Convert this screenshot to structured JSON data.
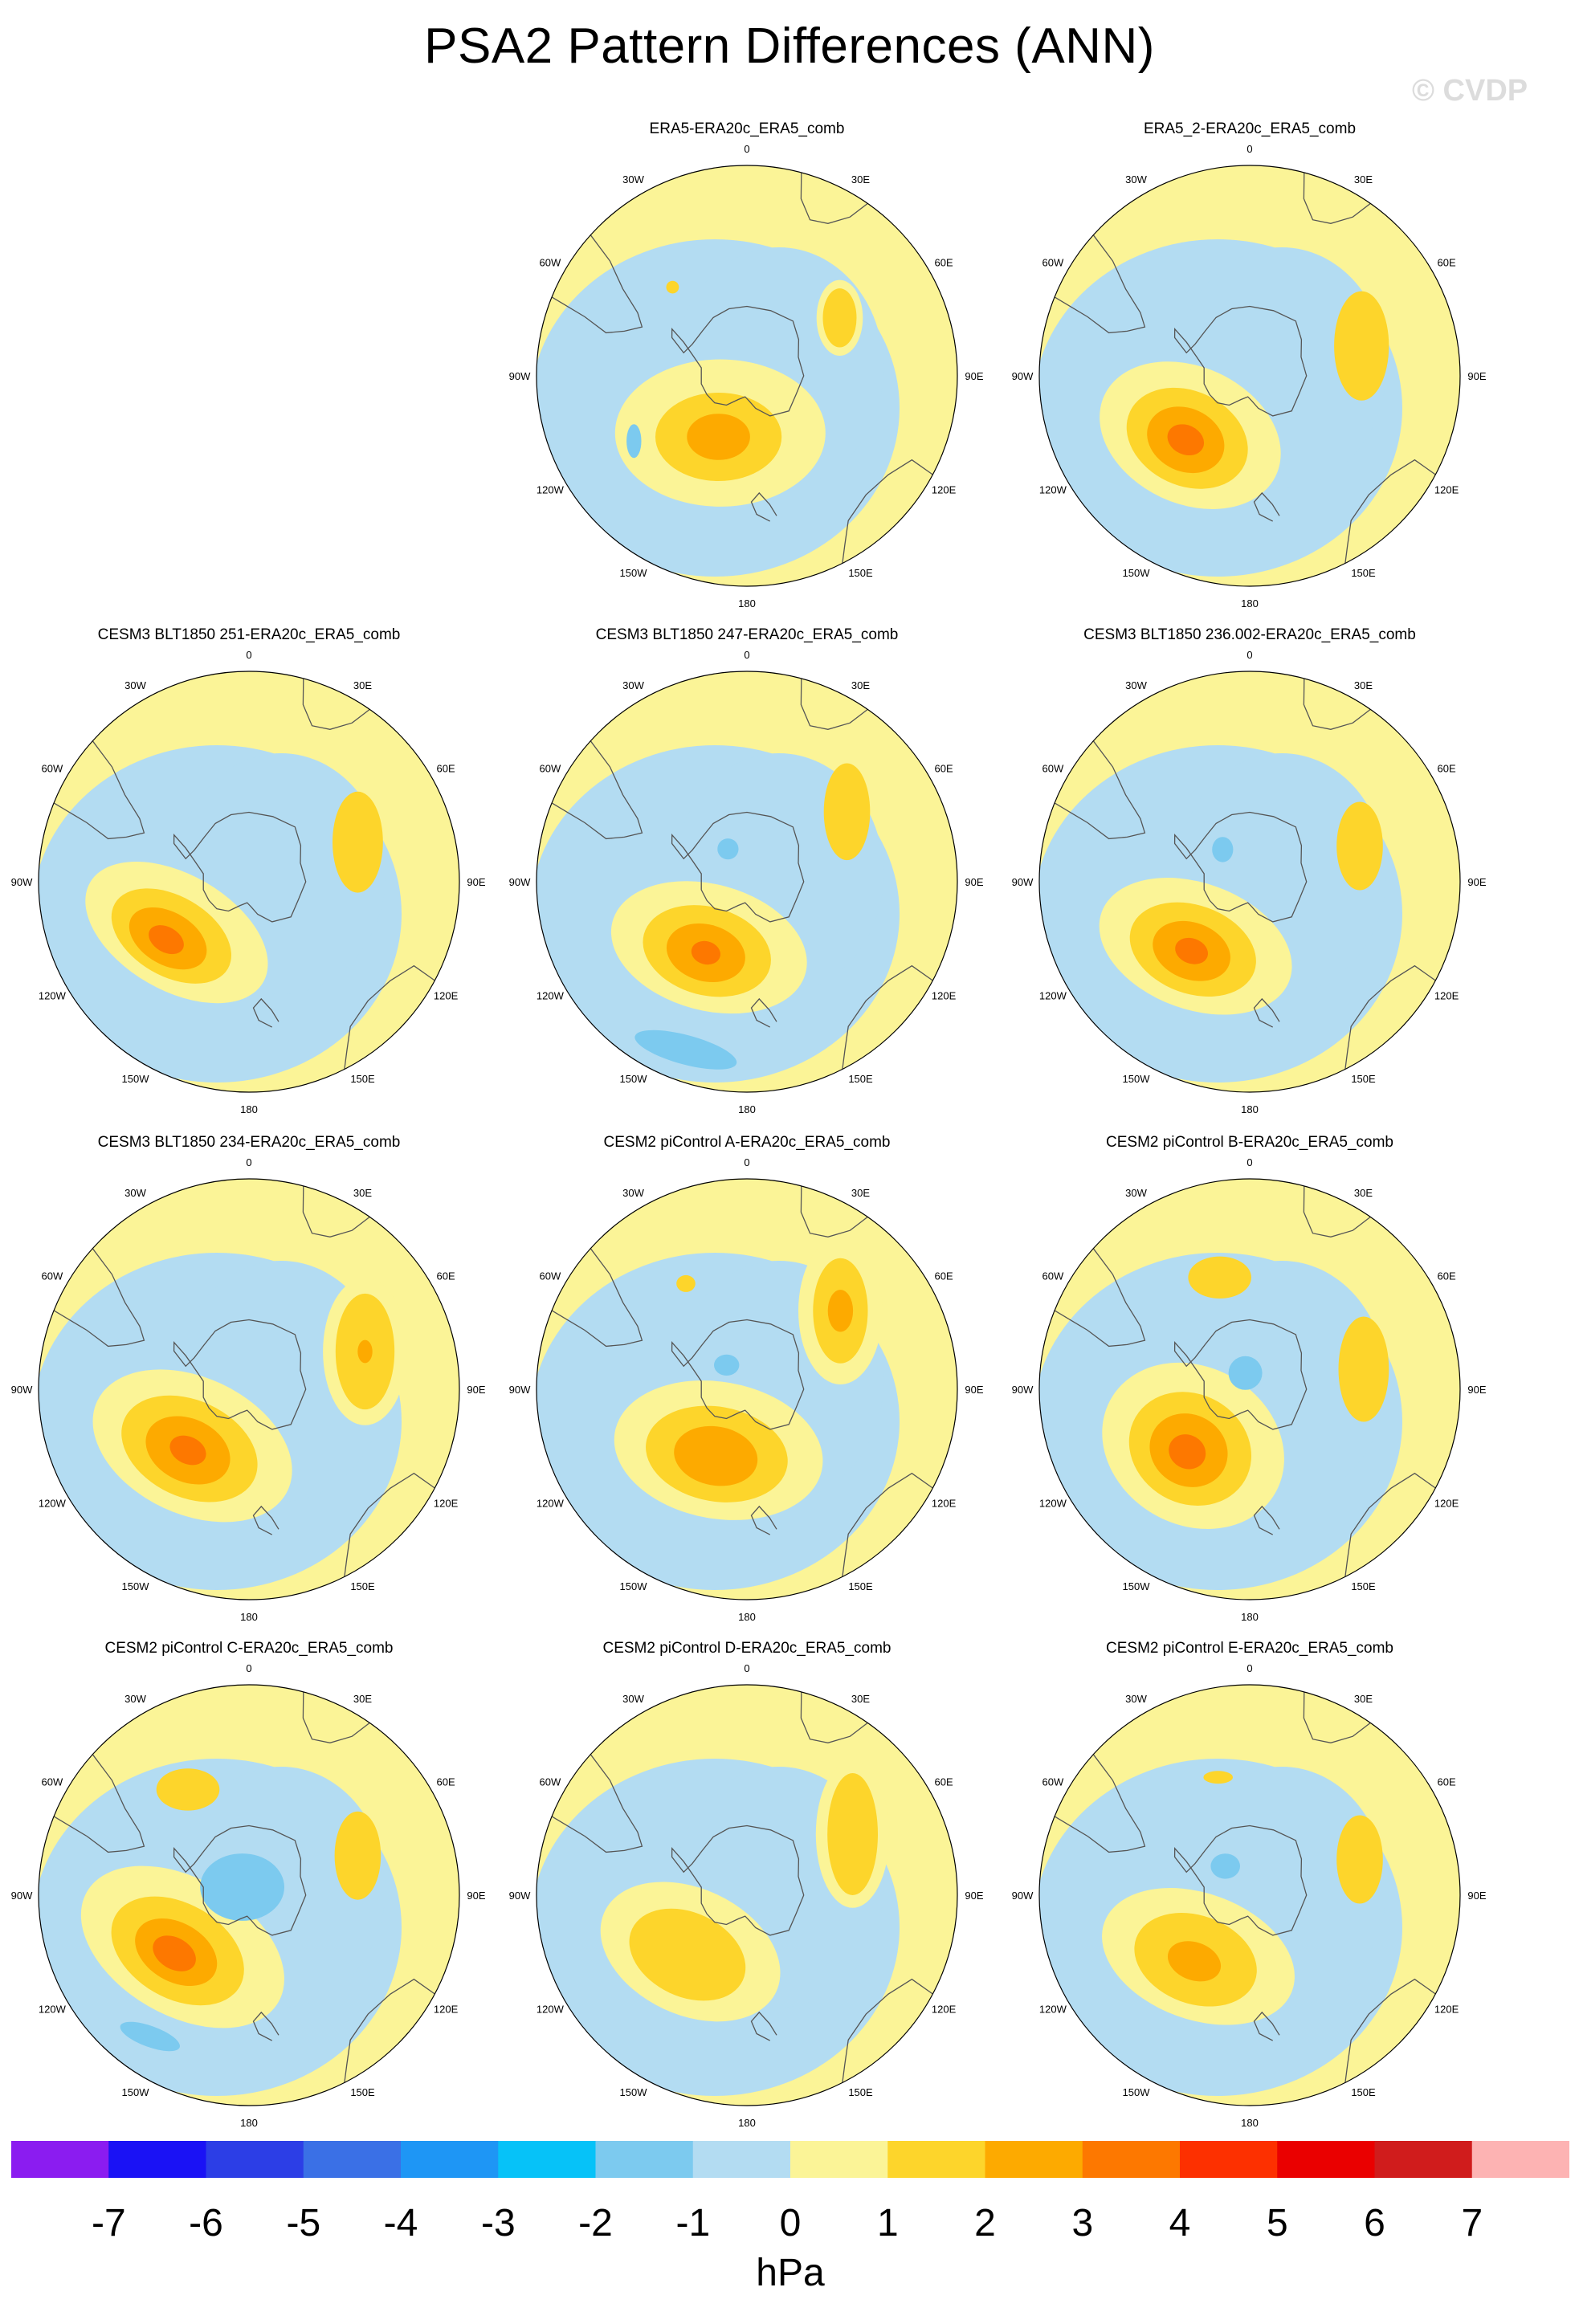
{
  "page": {
    "title": "PSA2 Pattern Differences (ANN)",
    "watermark": "© CVDP"
  },
  "chart_data": {
    "type": "heatmap",
    "title": "PSA2 Pattern Differences (ANN)",
    "projection": "south polar stereographic",
    "units": "hPa",
    "lon_labels": [
      "0",
      "30E",
      "60E",
      "90E",
      "120E",
      "150E",
      "180",
      "150W",
      "120W",
      "90W",
      "60W",
      "30W"
    ],
    "colorbar": {
      "ticks": [
        "-7",
        "-6",
        "-5",
        "-4",
        "-3",
        "-2",
        "-1",
        "0",
        "1",
        "2",
        "3",
        "4",
        "5",
        "6",
        "7"
      ],
      "colors": [
        "#8b1cf0",
        "#1a12f5",
        "#2c3ee6",
        "#3a70e6",
        "#1e96f5",
        "#06c2f8",
        "#7ccaef",
        "#b3dcf2",
        "#fbf497",
        "#fdd52b",
        "#fdaa00",
        "#fd7800",
        "#fd3000",
        "#ea0000",
        "#d01c1c",
        "#fdb3b3"
      ]
    },
    "panels": [
      {
        "title": "ERA5-ERA20c_ERA5_comb",
        "features": [
          {
            "level": 1,
            "lon": 205,
            "r": 0.3,
            "sx": 1.0,
            "sy": 0.7,
            "rot": 0
          },
          {
            "level": 2,
            "lon": 205,
            "r": 0.32,
            "sx": 0.6,
            "sy": 0.42,
            "rot": 0
          },
          {
            "level": 3,
            "lon": 205,
            "r": 0.32,
            "sx": 0.3,
            "sy": 0.22,
            "rot": 0
          },
          {
            "level": 1,
            "lon": 58,
            "r": 0.52,
            "sx": 0.22,
            "sy": 0.36,
            "rot": 0
          },
          {
            "level": 2,
            "lon": 58,
            "r": 0.52,
            "sx": 0.16,
            "sy": 0.28,
            "rot": 0
          },
          {
            "level": -2,
            "lon": 240,
            "r": 0.62,
            "sx": 0.07,
            "sy": 0.16,
            "rot": 0
          },
          {
            "level": 2,
            "lon": 320,
            "r": 0.55,
            "sx": 0.06,
            "sy": 0.06,
            "rot": 0
          }
        ]
      },
      {
        "title": "ERA5_2-ERA20c_ERA5_comb",
        "features": [
          {
            "level": 1,
            "lon": 225,
            "r": 0.4,
            "sx": 0.9,
            "sy": 0.65,
            "rot": 25
          },
          {
            "level": 2,
            "lon": 225,
            "r": 0.42,
            "sx": 0.6,
            "sy": 0.45,
            "rot": 25
          },
          {
            "level": 3,
            "lon": 225,
            "r": 0.43,
            "sx": 0.38,
            "sy": 0.3,
            "rot": 25
          },
          {
            "level": 4,
            "lon": 225,
            "r": 0.43,
            "sx": 0.18,
            "sy": 0.14,
            "rot": 25
          },
          {
            "level": 2,
            "lon": 75,
            "r": 0.55,
            "sx": 0.26,
            "sy": 0.52,
            "rot": 0
          }
        ]
      },
      {
        "title": "CESM3 BLT1850 251-ERA20c_ERA5_comb",
        "features": [
          {
            "level": 1,
            "lon": 235,
            "r": 0.42,
            "sx": 0.95,
            "sy": 0.55,
            "rot": 30
          },
          {
            "level": 2,
            "lon": 235,
            "r": 0.45,
            "sx": 0.62,
            "sy": 0.38,
            "rot": 30
          },
          {
            "level": 3,
            "lon": 235,
            "r": 0.47,
            "sx": 0.4,
            "sy": 0.25,
            "rot": 30
          },
          {
            "level": 4,
            "lon": 235,
            "r": 0.48,
            "sx": 0.18,
            "sy": 0.12,
            "rot": 30
          },
          {
            "level": 2,
            "lon": 70,
            "r": 0.55,
            "sx": 0.24,
            "sy": 0.48,
            "rot": 0
          }
        ]
      },
      {
        "title": "CESM3 BLT1850 247-ERA20c_ERA5_comb",
        "features": [
          {
            "level": 1,
            "lon": 210,
            "r": 0.36,
            "sx": 0.95,
            "sy": 0.6,
            "rot": 15
          },
          {
            "level": 2,
            "lon": 210,
            "r": 0.38,
            "sx": 0.62,
            "sy": 0.42,
            "rot": 15
          },
          {
            "level": 3,
            "lon": 210,
            "r": 0.39,
            "sx": 0.38,
            "sy": 0.27,
            "rot": 15
          },
          {
            "level": 4,
            "lon": 210,
            "r": 0.39,
            "sx": 0.14,
            "sy": 0.11,
            "rot": 15
          },
          {
            "level": 2,
            "lon": 55,
            "r": 0.58,
            "sx": 0.22,
            "sy": 0.46,
            "rot": 0
          },
          {
            "level": -2,
            "lon": 200,
            "r": 0.85,
            "sx": 0.5,
            "sy": 0.14,
            "rot": 15
          },
          {
            "level": -2,
            "lon": 330,
            "r": 0.18,
            "sx": 0.1,
            "sy": 0.1,
            "rot": 0
          }
        ]
      },
      {
        "title": "CESM3 BLT1850 236.002-ERA20c_ERA5_comb",
        "features": [
          {
            "level": 1,
            "lon": 220,
            "r": 0.4,
            "sx": 0.95,
            "sy": 0.6,
            "rot": 20
          },
          {
            "level": 2,
            "lon": 220,
            "r": 0.42,
            "sx": 0.62,
            "sy": 0.42,
            "rot": 20
          },
          {
            "level": 3,
            "lon": 220,
            "r": 0.43,
            "sx": 0.38,
            "sy": 0.27,
            "rot": 20
          },
          {
            "level": 4,
            "lon": 220,
            "r": 0.43,
            "sx": 0.16,
            "sy": 0.12,
            "rot": 20
          },
          {
            "level": 2,
            "lon": 72,
            "r": 0.55,
            "sx": 0.22,
            "sy": 0.42,
            "rot": 0
          },
          {
            "level": -2,
            "lon": 320,
            "r": 0.2,
            "sx": 0.1,
            "sy": 0.12,
            "rot": 0
          }
        ]
      },
      {
        "title": "CESM3 BLT1850 234-ERA20c_ERA5_comb",
        "features": [
          {
            "level": 1,
            "lon": 225,
            "r": 0.38,
            "sx": 1.0,
            "sy": 0.65,
            "rot": 25
          },
          {
            "level": 2,
            "lon": 225,
            "r": 0.4,
            "sx": 0.68,
            "sy": 0.46,
            "rot": 25
          },
          {
            "level": 3,
            "lon": 225,
            "r": 0.41,
            "sx": 0.42,
            "sy": 0.3,
            "rot": 25
          },
          {
            "level": 4,
            "lon": 225,
            "r": 0.41,
            "sx": 0.18,
            "sy": 0.13,
            "rot": 25
          },
          {
            "level": 1,
            "lon": 72,
            "r": 0.58,
            "sx": 0.4,
            "sy": 0.7,
            "rot": 0
          },
          {
            "level": 2,
            "lon": 72,
            "r": 0.58,
            "sx": 0.28,
            "sy": 0.55,
            "rot": 0
          },
          {
            "level": 3,
            "lon": 72,
            "r": 0.58,
            "sx": 0.07,
            "sy": 0.11,
            "rot": 0
          }
        ]
      },
      {
        "title": "CESM2 piControl A-ERA20c_ERA5_comb",
        "features": [
          {
            "level": 1,
            "lon": 205,
            "r": 0.32,
            "sx": 1.0,
            "sy": 0.65,
            "rot": 10
          },
          {
            "level": 2,
            "lon": 205,
            "r": 0.34,
            "sx": 0.68,
            "sy": 0.45,
            "rot": 10
          },
          {
            "level": 3,
            "lon": 205,
            "r": 0.35,
            "sx": 0.4,
            "sy": 0.28,
            "rot": 10
          },
          {
            "level": 1,
            "lon": 50,
            "r": 0.58,
            "sx": 0.4,
            "sy": 0.7,
            "rot": 0
          },
          {
            "level": 2,
            "lon": 50,
            "r": 0.58,
            "sx": 0.26,
            "sy": 0.5,
            "rot": 0
          },
          {
            "level": 3,
            "lon": 50,
            "r": 0.58,
            "sx": 0.12,
            "sy": 0.2,
            "rot": 0
          },
          {
            "level": 2,
            "lon": 330,
            "r": 0.58,
            "sx": 0.09,
            "sy": 0.08,
            "rot": 0
          },
          {
            "level": -2,
            "lon": 320,
            "r": 0.15,
            "sx": 0.12,
            "sy": 0.1,
            "rot": 0
          }
        ]
      },
      {
        "title": "CESM2 piControl B-ERA20c_ERA5_comb",
        "features": [
          {
            "level": 1,
            "lon": 225,
            "r": 0.38,
            "sx": 0.9,
            "sy": 0.75,
            "rot": 30
          },
          {
            "level": 2,
            "lon": 225,
            "r": 0.4,
            "sx": 0.6,
            "sy": 0.52,
            "rot": 30
          },
          {
            "level": 3,
            "lon": 225,
            "r": 0.41,
            "sx": 0.38,
            "sy": 0.34,
            "rot": 30
          },
          {
            "level": 4,
            "lon": 225,
            "r": 0.42,
            "sx": 0.18,
            "sy": 0.16,
            "rot": 30
          },
          {
            "level": 2,
            "lon": 80,
            "r": 0.55,
            "sx": 0.24,
            "sy": 0.5,
            "rot": 0
          },
          {
            "level": 2,
            "lon": 345,
            "r": 0.55,
            "sx": 0.3,
            "sy": 0.2,
            "rot": 0
          },
          {
            "level": -2,
            "lon": 345,
            "r": 0.08,
            "sx": 0.16,
            "sy": 0.16,
            "rot": 0
          }
        ]
      },
      {
        "title": "CESM2 piControl C-ERA20c_ERA5_comb",
        "features": [
          {
            "level": 1,
            "lon": 232,
            "r": 0.4,
            "sx": 1.05,
            "sy": 0.65,
            "rot": 30
          },
          {
            "level": 2,
            "lon": 232,
            "r": 0.43,
            "sx": 0.68,
            "sy": 0.45,
            "rot": 30
          },
          {
            "level": 3,
            "lon": 232,
            "r": 0.44,
            "sx": 0.42,
            "sy": 0.28,
            "rot": 30
          },
          {
            "level": 4,
            "lon": 232,
            "r": 0.45,
            "sx": 0.22,
            "sy": 0.15,
            "rot": 30
          },
          {
            "level": 2,
            "lon": 70,
            "r": 0.55,
            "sx": 0.22,
            "sy": 0.42,
            "rot": 0
          },
          {
            "level": 2,
            "lon": 330,
            "r": 0.58,
            "sx": 0.3,
            "sy": 0.2,
            "rot": 0
          },
          {
            "level": -2,
            "lon": 320,
            "r": 0.05,
            "sx": 0.4,
            "sy": 0.32,
            "rot": 0
          },
          {
            "level": -2,
            "lon": 215,
            "r": 0.82,
            "sx": 0.3,
            "sy": 0.1,
            "rot": 20
          }
        ]
      },
      {
        "title": "CESM2 piControl D-ERA20c_ERA5_comb",
        "features": [
          {
            "level": 1,
            "lon": 225,
            "r": 0.38,
            "sx": 0.9,
            "sy": 0.6,
            "rot": 25
          },
          {
            "level": 2,
            "lon": 225,
            "r": 0.4,
            "sx": 0.58,
            "sy": 0.4,
            "rot": 25
          },
          {
            "level": 1,
            "lon": 60,
            "r": 0.58,
            "sx": 0.35,
            "sy": 0.7,
            "rot": 0
          },
          {
            "level": 2,
            "lon": 60,
            "r": 0.58,
            "sx": 0.24,
            "sy": 0.58,
            "rot": 0
          }
        ]
      },
      {
        "title": "CESM2 piControl E-ERA20c_ERA5_comb",
        "features": [
          {
            "level": 1,
            "lon": 220,
            "r": 0.38,
            "sx": 0.95,
            "sy": 0.6,
            "rot": 20
          },
          {
            "level": 2,
            "lon": 220,
            "r": 0.4,
            "sx": 0.6,
            "sy": 0.42,
            "rot": 20
          },
          {
            "level": 3,
            "lon": 220,
            "r": 0.41,
            "sx": 0.26,
            "sy": 0.18,
            "rot": 20
          },
          {
            "level": 2,
            "lon": 72,
            "r": 0.55,
            "sx": 0.22,
            "sy": 0.42,
            "rot": 0
          },
          {
            "level": 2,
            "lon": 345,
            "r": 0.58,
            "sx": 0.14,
            "sy": 0.06,
            "rot": 0
          },
          {
            "level": -2,
            "lon": 320,
            "r": 0.18,
            "sx": 0.14,
            "sy": 0.12,
            "rot": 0
          }
        ]
      }
    ]
  }
}
